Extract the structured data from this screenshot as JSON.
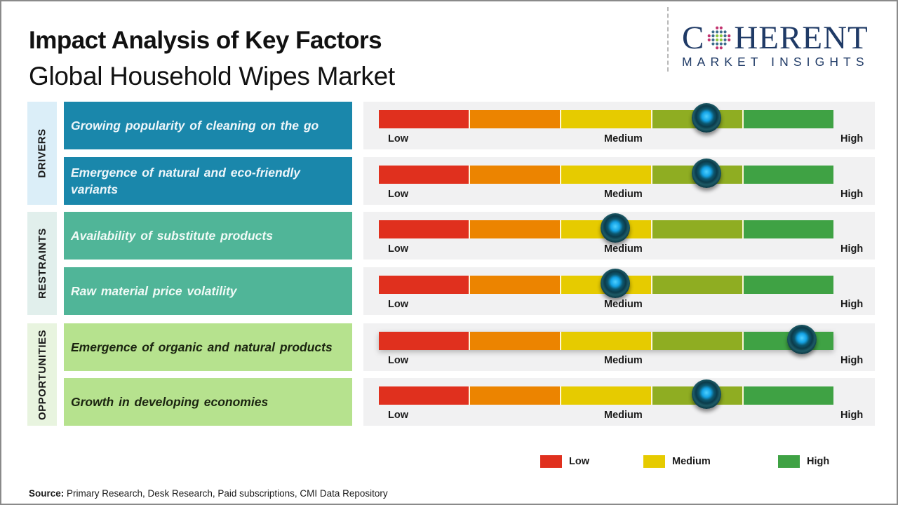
{
  "header": {
    "title": "Impact Analysis of Key Factors",
    "subtitle": "Global Household Wipes Market"
  },
  "logo": {
    "word_prefix": "C",
    "word_suffix": "HERENT",
    "tagline": "MARKET INSIGHTS",
    "color": "#1f3a66"
  },
  "scale": {
    "low_label": "Low",
    "medium_label": "Medium",
    "high_label": "High",
    "segment_colors": [
      "#e0301e",
      "#ec8400",
      "#e6cb00",
      "#8fad22",
      "#3fa244"
    ]
  },
  "groups": [
    {
      "label": "DRIVERS",
      "color": "#1a87ab",
      "tag_color": "#dbeef8"
    },
    {
      "label": "RESTRAINTS",
      "color": "#50b598",
      "tag_color": "#e1efec"
    },
    {
      "label": "OPPORTUNITIES",
      "color": "#b6e28e",
      "tag_color": "#e8f4df"
    }
  ],
  "chart_data": {
    "type": "table",
    "title": "Impact Analysis of Key Factors - Global Household Wipes Market",
    "scale": [
      "Low",
      "Medium",
      "High"
    ],
    "value_range": [
      0,
      1
    ],
    "factors": [
      {
        "group": "DRIVERS",
        "label": "Growing popularity of cleaning on the go",
        "impact": 0.72,
        "impact_level": "Medium-High"
      },
      {
        "group": "DRIVERS",
        "label": "Emergence of natural and eco-friendly variants",
        "impact": 0.72,
        "impact_level": "Medium-High"
      },
      {
        "group": "RESTRAINTS",
        "label": "Availability of substitute products",
        "impact": 0.52,
        "impact_level": "Medium"
      },
      {
        "group": "RESTRAINTS",
        "label": "Raw material price volatility",
        "impact": 0.52,
        "impact_level": "Medium"
      },
      {
        "group": "OPPORTUNITIES",
        "label": "Emergence of organic and natural products",
        "impact": 0.93,
        "impact_level": "High"
      },
      {
        "group": "OPPORTUNITIES",
        "label": "Growth in developing economies",
        "impact": 0.72,
        "impact_level": "Medium-High"
      }
    ],
    "legend": [
      {
        "label": "Low",
        "color": "#e0301e"
      },
      {
        "label": "Medium",
        "color": "#e6cb00"
      },
      {
        "label": "High",
        "color": "#3fa244"
      }
    ],
    "legend_position": "bottom-right"
  },
  "footer": {
    "source_label": "Source:",
    "source_text": " Primary Research, Desk Research, Paid subscriptions, CMI Data Repository"
  }
}
